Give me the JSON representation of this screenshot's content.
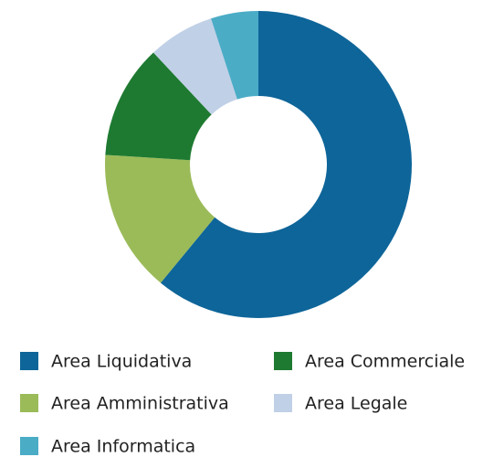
{
  "chart_data": {
    "type": "donut",
    "categories": [
      "Area Liquidativa",
      "Area Amministrativa",
      "Area Commerciale",
      "Area Legale",
      "Area Informatica"
    ],
    "values": [
      61,
      15,
      12,
      7,
      5
    ],
    "colors": [
      "#0e6599",
      "#9bbb59",
      "#1e7a31",
      "#c0d0e6",
      "#4bacc6"
    ],
    "legend": "bottom"
  }
}
